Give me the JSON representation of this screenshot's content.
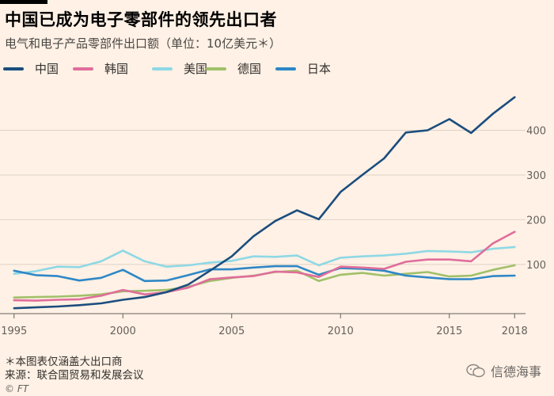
{
  "header": {
    "title": "中国已成为电子零部件的领先出口者",
    "subtitle": "电气和电子产品零部件出口额（单位：10亿美元＊）"
  },
  "footnote": {
    "note": "＊本图表仅涵盖大出口商",
    "source": "来源：联合国贸易和发展会议"
  },
  "credit": "© FT",
  "watermark": "信德海事",
  "chart_data": {
    "type": "line",
    "title": "中国已成为电子零部件的领先出口者",
    "subtitle": "电气和电子产品零部件出口额（单位：10亿美元＊）",
    "xlabel": "",
    "ylabel": "",
    "x": [
      1995,
      1996,
      1997,
      1998,
      1999,
      2000,
      2001,
      2002,
      2003,
      2004,
      2005,
      2006,
      2007,
      2008,
      2009,
      2010,
      2011,
      2012,
      2013,
      2014,
      2015,
      2016,
      2017,
      2018
    ],
    "xlim": [
      1994.5,
      2018.5
    ],
    "ylim": [
      -10,
      500
    ],
    "y_ticks": [
      100,
      200,
      300,
      400
    ],
    "x_ticks": [
      1995,
      2000,
      2005,
      2010,
      2015,
      2018
    ],
    "grid": "horizontal",
    "legend_position": "top",
    "series": [
      {
        "name": "中国",
        "color": "#1b4d7e",
        "values": [
          2,
          4,
          6,
          9,
          13,
          21,
          27,
          38,
          55,
          86,
          118,
          163,
          197,
          221,
          201,
          262,
          300,
          337,
          395,
          400,
          425,
          394,
          437,
          474
        ]
      },
      {
        "name": "韩国",
        "color": "#df6e9b",
        "values": [
          20,
          19,
          21,
          22,
          30,
          43,
          33,
          38,
          48,
          67,
          71,
          74,
          84,
          82,
          72,
          95,
          93,
          90,
          106,
          111,
          111,
          107,
          147,
          173
        ]
      },
      {
        "name": "美国",
        "color": "#8ed8e5",
        "values": [
          79,
          85,
          95,
          94,
          107,
          131,
          107,
          95,
          98,
          104,
          108,
          118,
          117,
          120,
          98,
          115,
          118,
          120,
          124,
          130,
          129,
          127,
          135,
          139
        ]
      },
      {
        "name": "德国",
        "color": "#a1c069",
        "values": [
          26,
          27,
          28,
          30,
          33,
          40,
          41,
          43,
          50,
          63,
          70,
          75,
          83,
          86,
          63,
          77,
          81,
          75,
          79,
          83,
          73,
          75,
          88,
          98
        ]
      },
      {
        "name": "日本",
        "color": "#2e87c6",
        "values": [
          86,
          76,
          74,
          64,
          70,
          88,
          63,
          64,
          76,
          89,
          89,
          93,
          96,
          96,
          77,
          92,
          90,
          86,
          75,
          71,
          67,
          67,
          74,
          75
        ]
      }
    ]
  }
}
